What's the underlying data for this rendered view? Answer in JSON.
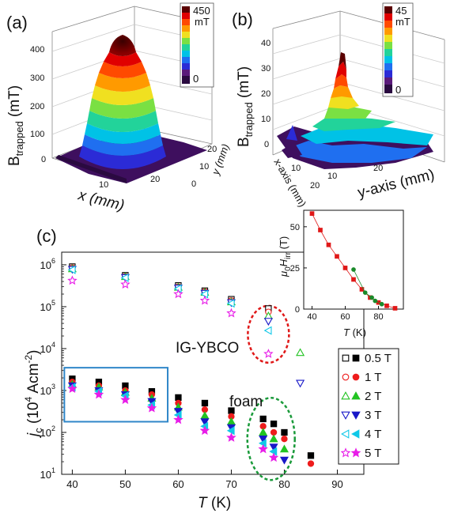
{
  "panels": {
    "a": {
      "label": "(a)",
      "colorbar": {
        "max": "450",
        "unit": "mT",
        "min": "0"
      },
      "z_ticks": [
        "400",
        "300",
        "200",
        "100",
        "0"
      ],
      "x_ticks": [
        "10",
        "20"
      ],
      "y_ticks": [
        "20",
        "10",
        "0"
      ],
      "z_label_main": "B",
      "z_label_sub": "trapped",
      "z_label_unit": " (mT)",
      "x_label": "x (mm)",
      "y_label": "y (mm)"
    },
    "b": {
      "label": "(b)",
      "colorbar": {
        "max": "45",
        "unit": "mT",
        "min": "0"
      },
      "z_ticks": [
        "40",
        "30",
        "20",
        "10",
        "0"
      ],
      "x_ticks": [
        "10",
        "20"
      ],
      "y_ticks": [
        "10",
        "20"
      ],
      "z_label_main": "B",
      "z_label_sub": "trapped",
      "z_label_unit": " (mT)",
      "x_label": "y-axis (mm)",
      "y_label": "x-axis (mm)"
    },
    "c": {
      "label": "(c)",
      "annotation_ig": "IG-YBCO",
      "annotation_foam": "foam",
      "y_label_main": "j",
      "y_label_sub": "c",
      "y_label_rest": " (10",
      "y_label_exp": "4",
      "y_label_unit": " Acm",
      "y_label_unit_exp": "-2",
      "y_label_close": ")",
      "x_label_main": "T",
      "x_label_unit": " (K)"
    },
    "inset": {
      "y_label_mu": "μ",
      "y_label_zero": "0",
      "y_label_h": "H",
      "y_label_sub": "irr",
      "y_label_unit": " (T)",
      "x_label_main": "T",
      "x_label_unit": " (K)"
    }
  },
  "colors": {
    "colormap": [
      "#2a0a40",
      "#5a1a7a",
      "#2b2bd6",
      "#1f6ff0",
      "#00c2e6",
      "#22d39a",
      "#7ae043",
      "#f0e020",
      "#ff9a00",
      "#ff4a00",
      "#e00000",
      "#5a0000"
    ],
    "s05": "#000000",
    "s1": "#ee1c1c",
    "s2": "#22c322",
    "s3": "#1818c8",
    "s4": "#10c8e8",
    "s5": "#e81ee8",
    "blue_box": "#2f86c8",
    "red_ellipse": "#e01818",
    "green_ellipse": "#1a9a3a",
    "ig_text": "#e01818",
    "foam_text": "#1a9a3a",
    "inset_red": "#e01818",
    "inset_green": "#1a8a2a"
  },
  "chart_data": [
    {
      "panel": "c",
      "type": "scatter",
      "y_scale": "log",
      "xlim": [
        38,
        95
      ],
      "ylim": [
        10,
        2000000
      ],
      "x_ticks": [
        40,
        50,
        60,
        70,
        80,
        90
      ],
      "y_ticks": [
        "10^1",
        "10^2",
        "10^3",
        "10^4",
        "10^5",
        "10^6"
      ],
      "grid": false,
      "legend_position": "right",
      "series": [
        {
          "name": "0.5 T",
          "key": "s05",
          "ig_ybco": [
            [
              40,
              900000
            ],
            [
              50,
              560000
            ],
            [
              60,
              320000
            ],
            [
              65,
              240000
            ],
            [
              70,
              150000
            ],
            [
              77,
              90000
            ]
          ],
          "foam": [
            [
              40,
              1900
            ],
            [
              45,
              1600
            ],
            [
              50,
              1300
            ],
            [
              55,
              950
            ],
            [
              60,
              680
            ],
            [
              65,
              500
            ],
            [
              70,
              330
            ],
            [
              76,
              210
            ],
            [
              78,
              160
            ],
            [
              80,
              100
            ],
            [
              85,
              28
            ]
          ]
        },
        {
          "name": "1 T",
          "key": "s1",
          "ig_ybco": [
            [
              40,
              850000
            ],
            [
              50,
              530000
            ],
            [
              60,
              300000
            ],
            [
              65,
              230000
            ],
            [
              70,
              140000
            ],
            [
              77,
              75000
            ]
          ],
          "foam": [
            [
              40,
              1600
            ],
            [
              45,
              1300
            ],
            [
              50,
              1000
            ],
            [
              55,
              800
            ],
            [
              60,
              500
            ],
            [
              65,
              350
            ],
            [
              70,
              240
            ],
            [
              76,
              140
            ],
            [
              78,
              100
            ],
            [
              80,
              70
            ],
            [
              85,
              18
            ]
          ]
        },
        {
          "name": "2 T",
          "key": "s2",
          "ig_ybco": [
            [
              40,
              800000
            ],
            [
              50,
              520000
            ],
            [
              60,
              290000
            ],
            [
              65,
              220000
            ],
            [
              70,
              130000
            ],
            [
              77,
              60000
            ],
            [
              83,
              8000
            ]
          ],
          "foam": [
            [
              40,
              1400
            ],
            [
              45,
              1200
            ],
            [
              50,
              900
            ],
            [
              55,
              650
            ],
            [
              60,
              400
            ],
            [
              65,
              250
            ],
            [
              70,
              180
            ],
            [
              76,
              100
            ],
            [
              78,
              70
            ],
            [
              80,
              40
            ]
          ]
        },
        {
          "name": "3 T",
          "key": "s3",
          "ig_ybco": [
            [
              40,
              780000
            ],
            [
              50,
              500000
            ],
            [
              60,
              280000
            ],
            [
              65,
              210000
            ],
            [
              70,
              125000
            ],
            [
              77,
              45000
            ],
            [
              83,
              1500
            ]
          ],
          "foam": [
            [
              40,
              1300
            ],
            [
              45,
              1000
            ],
            [
              50,
              800
            ],
            [
              55,
              550
            ],
            [
              60,
              320
            ],
            [
              65,
              180
            ],
            [
              70,
              130
            ],
            [
              76,
              70
            ],
            [
              78,
              45
            ],
            [
              80,
              22
            ]
          ]
        },
        {
          "name": "4 T",
          "key": "s4",
          "ig_ybco": [
            [
              40,
              760000
            ],
            [
              50,
              490000
            ],
            [
              60,
              270000
            ],
            [
              65,
              200000
            ],
            [
              70,
              120000
            ],
            [
              77,
              27000
            ]
          ],
          "foam": [
            [
              40,
              1200
            ],
            [
              45,
              950
            ],
            [
              50,
              750
            ],
            [
              55,
              450
            ],
            [
              60,
              260
            ],
            [
              65,
              140
            ],
            [
              70,
              110
            ],
            [
              76,
              55
            ],
            [
              78,
              35
            ]
          ]
        },
        {
          "name": "5 T",
          "key": "s5",
          "ig_ybco": [
            [
              40,
              420000
            ],
            [
              50,
              340000
            ],
            [
              60,
              200000
            ],
            [
              65,
              140000
            ],
            [
              70,
              70000
            ],
            [
              77,
              7500
            ]
          ],
          "foam": [
            [
              40,
              1100
            ],
            [
              45,
              800
            ],
            [
              50,
              600
            ],
            [
              55,
              380
            ],
            [
              60,
              200
            ],
            [
              65,
              110
            ],
            [
              70,
              75
            ],
            [
              76,
              40
            ],
            [
              78,
              25
            ]
          ]
        }
      ]
    },
    {
      "panel": "inset",
      "type": "scatter",
      "xlim": [
        35,
        95
      ],
      "ylim": [
        0,
        60
      ],
      "x_ticks": [
        40,
        60,
        80
      ],
      "y_ticks": [
        0,
        25,
        50
      ],
      "series": [
        {
          "key": "inset_red",
          "marker": "square",
          "points": [
            [
              40,
              58
            ],
            [
              45,
              48
            ],
            [
              50,
              39
            ],
            [
              55,
              32
            ],
            [
              60,
              25
            ],
            [
              65,
              18
            ],
            [
              70,
              12
            ],
            [
              75,
              7
            ],
            [
              80,
              4
            ],
            [
              85,
              2
            ],
            [
              90,
              0.5
            ]
          ]
        },
        {
          "key": "inset_green",
          "marker": "circle",
          "points": [
            [
              65,
              24
            ],
            [
              72,
              10
            ],
            [
              76,
              7
            ],
            [
              78,
              5
            ],
            [
              82,
              3
            ]
          ]
        }
      ]
    }
  ]
}
